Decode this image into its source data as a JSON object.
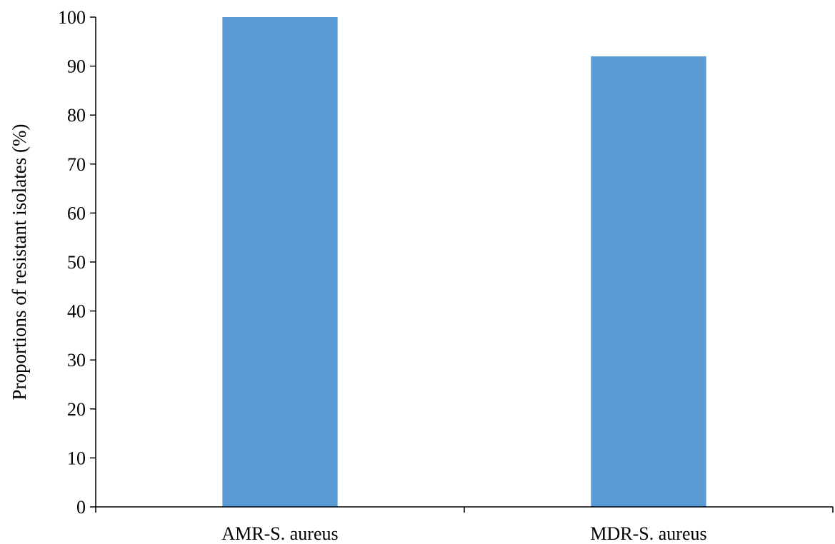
{
  "chart_data": {
    "type": "bar",
    "title": "",
    "xlabel": "",
    "ylabel": "Proportions of resistant isolates (%)",
    "categories": [
      "AMR-S. aureus",
      "MDR-S. aureus"
    ],
    "values": [
      100,
      92
    ],
    "ylim": [
      0,
      100
    ],
    "yticks": [
      0,
      10,
      20,
      30,
      40,
      50,
      60,
      70,
      80,
      90,
      100
    ],
    "grid": false,
    "legend": "none",
    "colors": {
      "bar": "#5B9BD5",
      "axis": "#000000",
      "background": "#FFFFFF"
    }
  }
}
